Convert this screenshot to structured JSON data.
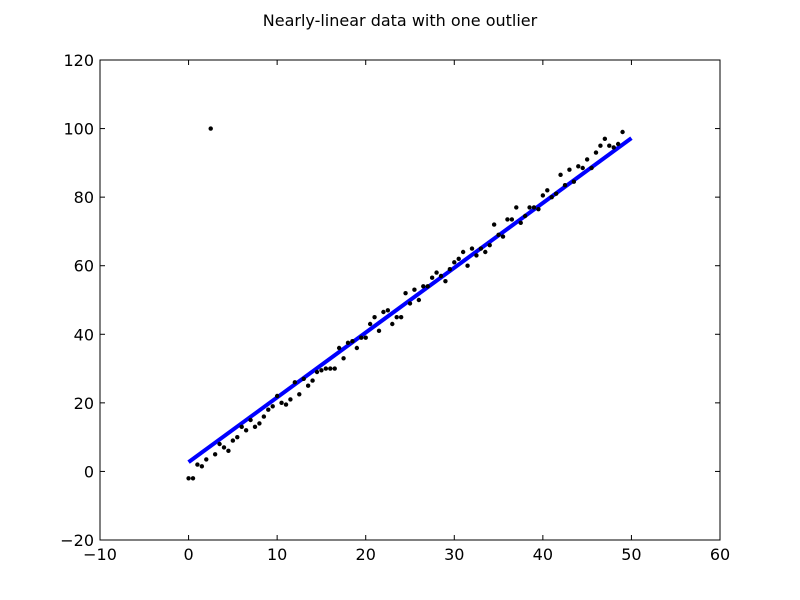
{
  "chart_data": {
    "type": "scatter",
    "title": "Nearly-linear data with one outlier",
    "xlabel": "",
    "ylabel": "",
    "xlim": [
      -10,
      60
    ],
    "ylim": [
      -20,
      120
    ],
    "xticks": [
      -10,
      0,
      10,
      20,
      30,
      40,
      50,
      60
    ],
    "yticks": [
      -20,
      0,
      20,
      40,
      60,
      80,
      100,
      120
    ],
    "xtick_labels": [
      "−10",
      "0",
      "10",
      "20",
      "30",
      "40",
      "50",
      "60"
    ],
    "ytick_labels": [
      "−20",
      "0",
      "20",
      "40",
      "60",
      "80",
      "100",
      "120"
    ],
    "grid": false,
    "colors": {
      "points": "#000000",
      "fit_line": "#0000ff",
      "axes": "#000000"
    },
    "series": [
      {
        "kind": "points",
        "x": [
          0.0,
          0.5,
          1.0,
          1.5,
          2.0,
          2.5,
          3.0,
          3.5,
          4.0,
          4.5,
          5.0,
          5.5,
          6.0,
          6.5,
          7.0,
          7.5,
          8.0,
          8.5,
          9.0,
          9.5,
          10.0,
          10.5,
          11.0,
          11.5,
          12.0,
          12.5,
          13.0,
          13.5,
          14.0,
          14.5,
          15.0,
          15.5,
          16.0,
          16.5,
          17.0,
          17.5,
          18.0,
          18.5,
          19.0,
          19.5,
          20.0,
          20.5,
          21.0,
          21.5,
          22.0,
          22.5,
          23.0,
          23.5,
          24.0,
          24.5,
          25.0,
          25.5,
          26.0,
          26.5,
          27.0,
          27.5,
          28.0,
          28.5,
          29.0,
          29.5,
          30.0,
          30.5,
          31.0,
          31.5,
          32.0,
          32.5,
          33.0,
          33.5,
          34.0,
          34.5,
          35.0,
          35.5,
          36.0,
          36.5,
          37.0,
          37.5,
          38.0,
          38.5,
          39.0,
          39.5,
          40.0,
          40.5,
          41.0,
          41.5,
          42.0,
          42.5,
          43.0,
          43.5,
          44.0,
          44.5,
          45.0,
          45.5,
          46.0,
          46.5,
          47.0,
          47.5,
          48.0,
          48.5,
          49.0
        ],
        "y": [
          -2,
          -2,
          2,
          1.5,
          3.5,
          100,
          5,
          8,
          7,
          6,
          9,
          10,
          13,
          12,
          15,
          13,
          14,
          16,
          18,
          19,
          22,
          20,
          19.5,
          21,
          26,
          22.5,
          27,
          25,
          26.5,
          29,
          29.5,
          30,
          30,
          30,
          36,
          33,
          37.5,
          38,
          36,
          39,
          39,
          43,
          45,
          41,
          46.5,
          47,
          43,
          45,
          45,
          52,
          49,
          53,
          50,
          54,
          54,
          56.5,
          58,
          57,
          55.5,
          59,
          61,
          62,
          64,
          60,
          65,
          63,
          65,
          64,
          66,
          72,
          69,
          68.5,
          73.5,
          73.5,
          77,
          72.5,
          74.5,
          77,
          77,
          76.5,
          80.5,
          82,
          80,
          81,
          86.5,
          83.5,
          88,
          84.5,
          89,
          88.5,
          91,
          88.5,
          93,
          95,
          97,
          95,
          94.5,
          95.5,
          99
        ]
      },
      {
        "kind": "fit_line",
        "x": [
          0,
          50
        ],
        "y": [
          2.7,
          97.2
        ]
      }
    ]
  }
}
